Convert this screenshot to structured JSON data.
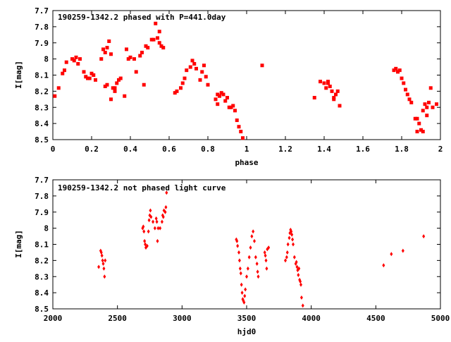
{
  "chart_data": [
    {
      "type": "scatter",
      "title": "190259-1342.2 phased with P=441.0day",
      "xlabel": "phase",
      "ylabel": "I[mag]",
      "xlim": [
        0,
        2
      ],
      "ylim": [
        7.7,
        8.5
      ],
      "y_inverted": true,
      "xticks": [
        0,
        0.2,
        0.4,
        0.6,
        0.8,
        1,
        1.2,
        1.4,
        1.6,
        1.8,
        2
      ],
      "xtick_labels": [
        "0",
        "0.2",
        "0.4",
        "0.6",
        "0.8",
        "1",
        "1.2",
        "1.4",
        "1.6",
        "1.8",
        "2"
      ],
      "yticks": [
        7.7,
        7.8,
        7.9,
        8.0,
        8.1,
        8.2,
        8.3,
        8.4,
        8.5
      ],
      "ytick_labels": [
        "7.7",
        "7.8",
        "7.9",
        "8",
        "8.1",
        "8.2",
        "8.3",
        "8.4",
        "8.5"
      ],
      "grid": false,
      "marker_color": "#ff0000",
      "points": [
        [
          0.01,
          8.23
        ],
        [
          0.03,
          8.18
        ],
        [
          0.05,
          8.09
        ],
        [
          0.06,
          8.07
        ],
        [
          0.07,
          8.02
        ],
        [
          0.1,
          8.0
        ],
        [
          0.11,
          8.01
        ],
        [
          0.12,
          7.99
        ],
        [
          0.13,
          8.03
        ],
        [
          0.14,
          8.0
        ],
        [
          0.16,
          8.08
        ],
        [
          0.17,
          8.11
        ],
        [
          0.18,
          8.12
        ],
        [
          0.19,
          8.12
        ],
        [
          0.2,
          8.09
        ],
        [
          0.21,
          8.1
        ],
        [
          0.22,
          8.13
        ],
        [
          0.25,
          8.0
        ],
        [
          0.26,
          7.94
        ],
        [
          0.27,
          7.96
        ],
        [
          0.27,
          8.17
        ],
        [
          0.28,
          8.16
        ],
        [
          0.28,
          7.93
        ],
        [
          0.29,
          7.89
        ],
        [
          0.3,
          7.97
        ],
        [
          0.3,
          8.25
        ],
        [
          0.31,
          8.18
        ],
        [
          0.32,
          8.2
        ],
        [
          0.32,
          8.18
        ],
        [
          0.33,
          8.15
        ],
        [
          0.34,
          8.13
        ],
        [
          0.35,
          8.12
        ],
        [
          0.37,
          8.23
        ],
        [
          0.38,
          7.94
        ],
        [
          0.39,
          8.0
        ],
        [
          0.4,
          7.99
        ],
        [
          0.42,
          8.0
        ],
        [
          0.43,
          8.08
        ],
        [
          0.45,
          7.98
        ],
        [
          0.46,
          7.96
        ],
        [
          0.47,
          8.16
        ],
        [
          0.48,
          7.92
        ],
        [
          0.49,
          7.93
        ],
        [
          0.51,
          7.88
        ],
        [
          0.52,
          7.88
        ],
        [
          0.53,
          7.78
        ],
        [
          0.54,
          7.87
        ],
        [
          0.55,
          7.9
        ],
        [
          0.55,
          7.83
        ],
        [
          0.56,
          7.92
        ],
        [
          0.57,
          7.93
        ],
        [
          0.63,
          8.21
        ],
        [
          0.64,
          8.2
        ],
        [
          0.66,
          8.18
        ],
        [
          0.67,
          8.15
        ],
        [
          0.68,
          8.12
        ],
        [
          0.69,
          8.07
        ],
        [
          0.71,
          8.05
        ],
        [
          0.72,
          8.01
        ],
        [
          0.73,
          8.03
        ],
        [
          0.74,
          8.06
        ],
        [
          0.76,
          8.13
        ],
        [
          0.77,
          8.08
        ],
        [
          0.78,
          8.04
        ],
        [
          0.79,
          8.11
        ],
        [
          0.8,
          8.16
        ],
        [
          0.84,
          8.25
        ],
        [
          0.85,
          8.28
        ],
        [
          0.85,
          8.22
        ],
        [
          0.86,
          8.23
        ],
        [
          0.87,
          8.21
        ],
        [
          0.88,
          8.22
        ],
        [
          0.89,
          8.26
        ],
        [
          0.9,
          8.24
        ],
        [
          0.91,
          8.3
        ],
        [
          0.92,
          8.3
        ],
        [
          0.93,
          8.29
        ],
        [
          0.94,
          8.32
        ],
        [
          0.95,
          8.38
        ],
        [
          0.96,
          8.42
        ],
        [
          0.97,
          8.45
        ],
        [
          0.98,
          8.49
        ],
        [
          1.08,
          8.04
        ],
        [
          1.35,
          8.24
        ],
        [
          1.38,
          8.14
        ],
        [
          1.4,
          8.15
        ],
        [
          1.41,
          8.18
        ],
        [
          1.42,
          8.15
        ],
        [
          1.42,
          8.14
        ],
        [
          1.43,
          8.17
        ],
        [
          1.44,
          8.2
        ],
        [
          1.45,
          8.24
        ],
        [
          1.45,
          8.25
        ],
        [
          1.46,
          8.22
        ],
        [
          1.47,
          8.2
        ],
        [
          1.48,
          8.29
        ],
        [
          1.76,
          8.07
        ],
        [
          1.77,
          8.06
        ],
        [
          1.78,
          8.08
        ],
        [
          1.79,
          8.07
        ],
        [
          1.8,
          8.12
        ],
        [
          1.81,
          8.15
        ],
        [
          1.82,
          8.19
        ],
        [
          1.83,
          8.22
        ],
        [
          1.84,
          8.25
        ],
        [
          1.85,
          8.27
        ],
        [
          1.87,
          8.37
        ],
        [
          1.88,
          8.37
        ],
        [
          1.88,
          8.45
        ],
        [
          1.89,
          8.4
        ],
        [
          1.9,
          8.44
        ],
        [
          1.91,
          8.45
        ],
        [
          1.91,
          8.32
        ],
        [
          1.92,
          8.28
        ],
        [
          1.93,
          8.35
        ],
        [
          1.93,
          8.3
        ],
        [
          1.94,
          8.27
        ],
        [
          1.95,
          8.18
        ],
        [
          1.96,
          8.3
        ],
        [
          1.98,
          8.28
        ]
      ]
    },
    {
      "type": "scatter",
      "title": "190259-1342.2 not phased light curve",
      "xlabel": "hjd0",
      "ylabel": "I[mag]",
      "xlim": [
        2000,
        5000
      ],
      "ylim": [
        7.7,
        8.5
      ],
      "y_inverted": true,
      "xticks": [
        2000,
        2500,
        3000,
        3500,
        4000,
        4500,
        5000
      ],
      "xtick_labels": [
        "2000",
        "2500",
        "3000",
        "3500",
        "4000",
        "4500",
        "5000"
      ],
      "yticks": [
        7.7,
        7.8,
        7.9,
        8.0,
        8.1,
        8.2,
        8.3,
        8.4,
        8.5
      ],
      "ytick_labels": [
        "7.7",
        "7.8",
        "7.9",
        "8",
        "8.1",
        "8.2",
        "8.3",
        "8.4",
        "8.5"
      ],
      "grid": false,
      "marker_color": "#ff0000",
      "points": [
        [
          2355,
          8.24
        ],
        [
          2370,
          8.14
        ],
        [
          2375,
          8.15
        ],
        [
          2380,
          8.17
        ],
        [
          2385,
          8.2
        ],
        [
          2390,
          8.22
        ],
        [
          2395,
          8.25
        ],
        [
          2400,
          8.3
        ],
        [
          2405,
          8.2
        ],
        [
          2695,
          8.0
        ],
        [
          2700,
          7.99
        ],
        [
          2705,
          8.02
        ],
        [
          2710,
          8.08
        ],
        [
          2715,
          8.1
        ],
        [
          2720,
          8.12
        ],
        [
          2730,
          8.11
        ],
        [
          2740,
          8.02
        ],
        [
          2745,
          7.95
        ],
        [
          2750,
          7.92
        ],
        [
          2755,
          7.89
        ],
        [
          2760,
          7.93
        ],
        [
          2775,
          7.96
        ],
        [
          2790,
          8.0
        ],
        [
          2800,
          7.94
        ],
        [
          2805,
          7.96
        ],
        [
          2810,
          8.08
        ],
        [
          2815,
          8.0
        ],
        [
          2830,
          8.0
        ],
        [
          2845,
          7.96
        ],
        [
          2850,
          7.92
        ],
        [
          2855,
          7.93
        ],
        [
          2860,
          7.89
        ],
        [
          2870,
          7.9
        ],
        [
          2875,
          7.87
        ],
        [
          2880,
          7.78
        ],
        [
          3420,
          8.07
        ],
        [
          3425,
          8.08
        ],
        [
          3430,
          8.11
        ],
        [
          3440,
          8.15
        ],
        [
          3445,
          8.2
        ],
        [
          3450,
          8.25
        ],
        [
          3455,
          8.28
        ],
        [
          3460,
          8.35
        ],
        [
          3465,
          8.4
        ],
        [
          3470,
          8.44
        ],
        [
          3475,
          8.45
        ],
        [
          3480,
          8.46
        ],
        [
          3485,
          8.42
        ],
        [
          3490,
          8.38
        ],
        [
          3500,
          8.3
        ],
        [
          3510,
          8.25
        ],
        [
          3520,
          8.18
        ],
        [
          3530,
          8.12
        ],
        [
          3540,
          8.05
        ],
        [
          3550,
          8.02
        ],
        [
          3560,
          8.08
        ],
        [
          3570,
          8.18
        ],
        [
          3580,
          8.22
        ],
        [
          3585,
          8.27
        ],
        [
          3590,
          8.3
        ],
        [
          3640,
          8.15
        ],
        [
          3645,
          8.17
        ],
        [
          3650,
          8.2
        ],
        [
          3655,
          8.25
        ],
        [
          3660,
          8.13
        ],
        [
          3670,
          8.12
        ],
        [
          3800,
          8.2
        ],
        [
          3810,
          8.18
        ],
        [
          3815,
          8.15
        ],
        [
          3820,
          8.1
        ],
        [
          3830,
          8.06
        ],
        [
          3835,
          8.03
        ],
        [
          3840,
          8.01
        ],
        [
          3845,
          8.02
        ],
        [
          3850,
          8.04
        ],
        [
          3855,
          8.07
        ],
        [
          3860,
          8.1
        ],
        [
          3870,
          8.18
        ],
        [
          3880,
          8.22
        ],
        [
          3885,
          8.21
        ],
        [
          3890,
          8.24
        ],
        [
          3895,
          8.26
        ],
        [
          3900,
          8.29
        ],
        [
          3905,
          8.25
        ],
        [
          3910,
          8.32
        ],
        [
          3915,
          8.33
        ],
        [
          3920,
          8.35
        ],
        [
          3925,
          8.43
        ],
        [
          3935,
          8.48
        ],
        [
          4560,
          8.23
        ],
        [
          4620,
          8.16
        ],
        [
          4710,
          8.14
        ],
        [
          4870,
          8.05
        ]
      ]
    }
  ]
}
